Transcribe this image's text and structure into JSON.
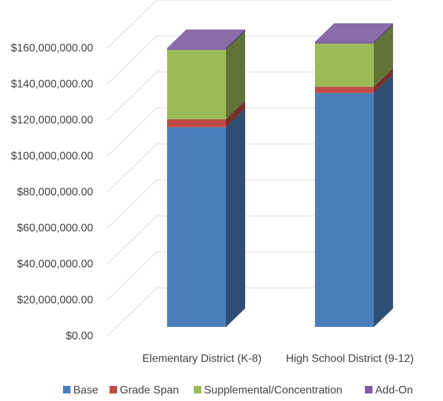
{
  "chart_data": {
    "type": "bar",
    "stacked": true,
    "three_d": true,
    "title": "",
    "xlabel": "",
    "ylabel": "",
    "ylim": [
      0,
      160000000
    ],
    "ytick_step": 20000000,
    "ytick_labels": [
      "$0.00",
      "$20,000,000.00",
      "$40,000,000.00",
      "$60,000,000.00",
      "$80,000,000.00",
      "$100,000,000.00",
      "$120,000,000.00",
      "$140,000,000.00",
      "$160,000,000.00"
    ],
    "categories": [
      "Elementary District (K-8)",
      "High School District (9-12)"
    ],
    "series": [
      {
        "name": "Base",
        "values": [
          111000000,
          130000000
        ],
        "color": "#4A7EBB"
      },
      {
        "name": "Grade Span",
        "values": [
          4500000,
          3500000
        ],
        "color": "#BE4B48"
      },
      {
        "name": "Supplemental/Concentration",
        "values": [
          38500000,
          24000000
        ],
        "color": "#9BBB59"
      },
      {
        "name": "Add-On",
        "values": [
          1000000,
          1000000
        ],
        "color": "#7F5FA0"
      }
    ],
    "grid": true,
    "legend_position": "bottom"
  }
}
